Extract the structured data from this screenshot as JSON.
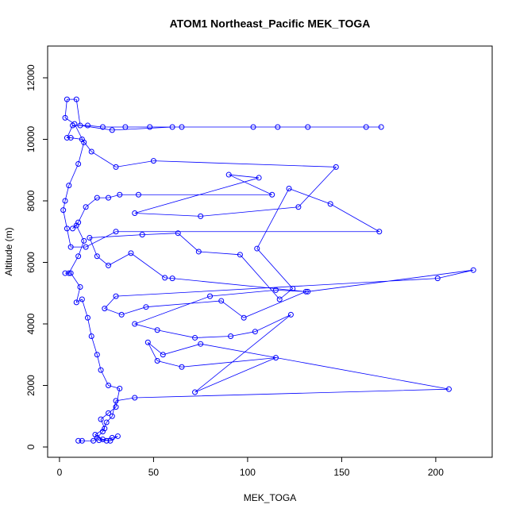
{
  "chart_data": {
    "type": "line",
    "title": "ATOM1 Northeast_Pacific MEK_TOGA",
    "x_label": "MEK_TOGA",
    "y_label": "Altitude (m)",
    "color": "#0000ff",
    "x": [
      25,
      21,
      28,
      31,
      27,
      23,
      19,
      24,
      22,
      26,
      30,
      32,
      26,
      22,
      20,
      17,
      15,
      12,
      9,
      11,
      6,
      3,
      5,
      10,
      13,
      9,
      7,
      10,
      14,
      20,
      26,
      32,
      42,
      113,
      90,
      106,
      40,
      75,
      127,
      147,
      50,
      30,
      17,
      12,
      6,
      4,
      7,
      15,
      23,
      35,
      48,
      65,
      103,
      116,
      132,
      163,
      171,
      60,
      28,
      11,
      9,
      4,
      3,
      8,
      13,
      10,
      5,
      3,
      2,
      4,
      6,
      14,
      30,
      170,
      144,
      122,
      105,
      124,
      117,
      96,
      74,
      63,
      44,
      16,
      20,
      26,
      38,
      56,
      60,
      131,
      98,
      86,
      46,
      33,
      24,
      30,
      201,
      220,
      132,
      115,
      80,
      40,
      52,
      72,
      91,
      104,
      123,
      72,
      115,
      65,
      52,
      47,
      55,
      75,
      207,
      40,
      30,
      28,
      25,
      23,
      20,
      18,
      12,
      10
    ],
    "values": [
      200,
      220,
      300,
      350,
      200,
      250,
      400,
      600,
      900,
      1100,
      1300,
      1900,
      2000,
      2500,
      3000,
      3600,
      4200,
      4800,
      4700,
      5200,
      5650,
      5650,
      5650,
      6200,
      6700,
      7200,
      7100,
      7300,
      7800,
      8100,
      8100,
      8200,
      8200,
      8200,
      8850,
      8750,
      7600,
      7500,
      7800,
      9100,
      9300,
      9100,
      9600,
      10000,
      10050,
      10050,
      10450,
      10450,
      10400,
      10400,
      10400,
      10400,
      10400,
      10400,
      10400,
      10400,
      10400,
      10400,
      10300,
      10450,
      11300,
      11300,
      10700,
      10500,
      9900,
      9200,
      8500,
      8000,
      7700,
      7100,
      6500,
      6500,
      7000,
      7000,
      7900,
      8400,
      6450,
      5150,
      4800,
      6250,
      6350,
      6950,
      6900,
      6800,
      6200,
      5900,
      6300,
      5500,
      5480,
      5050,
      4200,
      4750,
      4550,
      4300,
      4500,
      4900,
      5480,
      5750,
      5050,
      5100,
      4900,
      4000,
      3800,
      3550,
      3600,
      3750,
      4300,
      1780,
      2900,
      2600,
      2800,
      3400,
      3000,
      3350,
      1880,
      1600,
      1500,
      1000,
      800,
      500,
      300,
      200,
      200,
      200
    ],
    "xlim": [
      -6.3,
      230
    ],
    "ylim": [
      -335,
      13032
    ],
    "xticks": [
      0,
      50,
      100,
      150,
      200
    ],
    "yticks": [
      0,
      2000,
      4000,
      6000,
      8000,
      10000,
      12000
    ]
  }
}
